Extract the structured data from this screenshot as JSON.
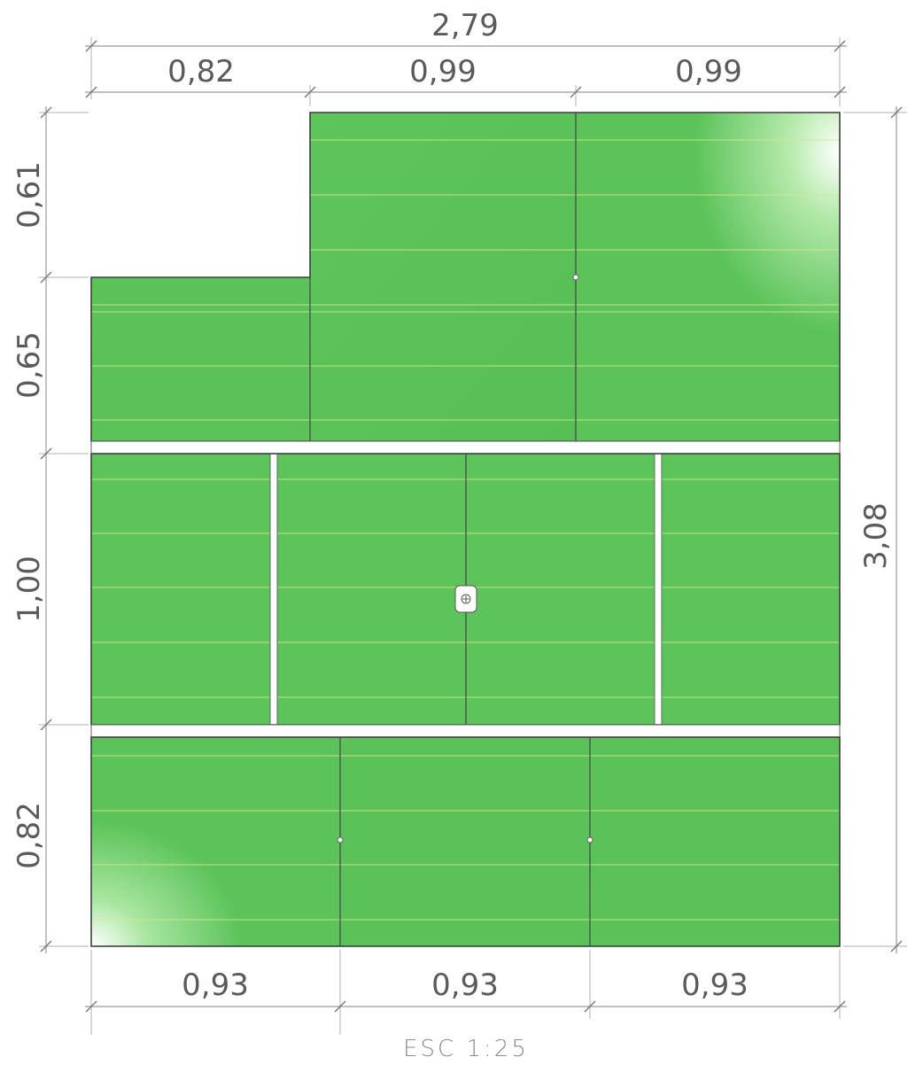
{
  "dimensions": {
    "top_total": "2,79",
    "top_segments": [
      "0,82",
      "0,99",
      "0,99"
    ],
    "bottom_segments": [
      "0,93",
      "0,93",
      "0,93"
    ],
    "left_segments": [
      "0,61",
      "0,65",
      "1,00",
      "0,82"
    ],
    "right_total": "3,08"
  },
  "scale_label": "ESC 1:25",
  "colors": {
    "panel_green": "#5cc35a",
    "panel_green_light": "#a8e6a0",
    "course_line": "#d8e88a",
    "edge": "#3e3e3e"
  },
  "drain_icon": "floor-drain-icon"
}
